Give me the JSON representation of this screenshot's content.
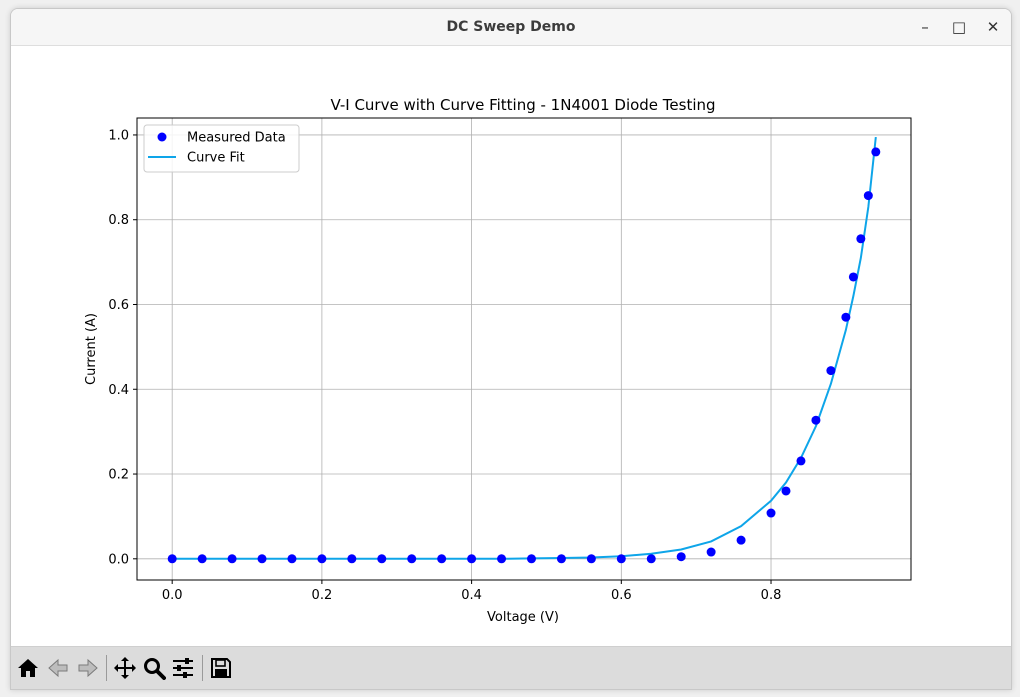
{
  "window": {
    "title": "DC Sweep Demo",
    "minimize_symbol": "–",
    "maximize_symbol": "□",
    "close_symbol": "✕"
  },
  "toolbar": {
    "buttons": [
      {
        "name": "home-icon"
      },
      {
        "name": "back-icon"
      },
      {
        "name": "forward-icon"
      },
      {
        "name": "pan-icon"
      },
      {
        "name": "zoom-icon"
      },
      {
        "name": "configure-subplots-icon"
      },
      {
        "name": "save-icon"
      }
    ]
  },
  "chart_data": {
    "type": "scatter",
    "title": "V-I Curve with Curve Fitting - 1N4001 Diode Testing",
    "xlabel": "Voltage (V)",
    "ylabel": "Current (A)",
    "xlim": [
      -0.047,
      0.987
    ],
    "ylim": [
      -0.05,
      1.04
    ],
    "xticks": [
      "0.0",
      "0.2",
      "0.4",
      "0.6",
      "0.8"
    ],
    "yticks": [
      "0.0",
      "0.2",
      "0.4",
      "0.6",
      "0.8",
      "1.0"
    ],
    "grid": true,
    "legend_position": "top-left",
    "series": [
      {
        "name": "Measured Data",
        "kind": "markers",
        "color": "#0000ff",
        "x": [
          0.0,
          0.04,
          0.08,
          0.12,
          0.16,
          0.2,
          0.24,
          0.28,
          0.32,
          0.36,
          0.4,
          0.44,
          0.48,
          0.52,
          0.56,
          0.6,
          0.64,
          0.68,
          0.72,
          0.76,
          0.8,
          0.82,
          0.84,
          0.86,
          0.88,
          0.9,
          0.91,
          0.92,
          0.93,
          0.94
        ],
        "y": [
          0.0,
          0.0,
          0.0,
          0.0,
          0.0,
          0.0,
          0.0,
          0.0,
          0.0,
          0.0,
          0.0,
          0.0,
          0.0,
          0.0,
          0.0,
          0.0,
          0.0,
          0.005,
          0.016,
          0.044,
          0.108,
          0.16,
          0.231,
          0.327,
          0.444,
          0.57,
          0.665,
          0.755,
          0.857,
          0.96
        ]
      },
      {
        "name": "Curve Fit",
        "kind": "line",
        "color": "#0ea5e9",
        "x": [
          0.0,
          0.04,
          0.08,
          0.12,
          0.16,
          0.2,
          0.24,
          0.28,
          0.32,
          0.36,
          0.4,
          0.44,
          0.48,
          0.52,
          0.56,
          0.6,
          0.64,
          0.68,
          0.72,
          0.76,
          0.8,
          0.82,
          0.84,
          0.86,
          0.88,
          0.9,
          0.91,
          0.92,
          0.93,
          0.94
        ],
        "y": [
          0.0,
          0.0,
          0.0,
          0.0,
          0.0,
          0.0,
          0.0,
          0.0,
          0.0,
          0.0,
          0.0,
          0.0,
          0.001,
          0.002,
          0.003,
          0.006,
          0.012,
          0.022,
          0.041,
          0.077,
          0.137,
          0.18,
          0.238,
          0.313,
          0.413,
          0.54,
          0.62,
          0.71,
          0.83,
          0.995
        ]
      }
    ]
  }
}
